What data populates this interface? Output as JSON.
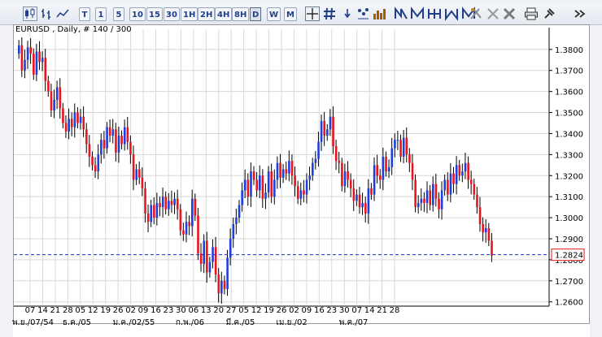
{
  "toolbar": {
    "periods": [
      "1",
      "5",
      "10",
      "15",
      "30",
      "1H",
      "2H",
      "4H",
      "8H",
      "D",
      "W",
      "M"
    ],
    "selected_period": "D",
    "icons": [
      "candlestick-icon",
      "bar-chart-icon",
      "line-chart-icon",
      "T",
      "crosshair-icon",
      "grid-icon",
      "info-icon",
      "indicator-icon",
      "volume-icon",
      "trend-up-icon",
      "trend-down-icon",
      "trend-cross-icon",
      "trend-zigzag-icon",
      "trend-multi-icon",
      "delete-selected-icon",
      "delete-all-icon",
      "close-icon",
      "print-icon",
      "pin-icon",
      "more-icon"
    ]
  },
  "chart_title": "EURUSD , Daily, # 140 / 300",
  "current_price_label": "1.2824",
  "colors": {
    "up": "#1f3fdc",
    "down": "#e8141e",
    "grid": "#d8d8d8",
    "axis_text": "#000000",
    "price_line": "#1f2fd0",
    "price_box": "#e01818"
  },
  "chart_data": {
    "type": "candlestick",
    "y_ticks": [
      "1.3800",
      "1.3700",
      "1.3600",
      "1.3500",
      "1.3400",
      "1.3300",
      "1.3200",
      "1.3100",
      "1.3000",
      "1.2900",
      "1.2800",
      "1.2700",
      "1.2600"
    ],
    "ylim": [
      1.2595,
      1.3865
    ],
    "x_ticks": [
      "07",
      "14",
      "21",
      "28",
      "05",
      "12",
      "19",
      "26",
      "02",
      "09",
      "16",
      "23",
      "30",
      "06",
      "13",
      "20",
      "27",
      "05",
      "12",
      "19",
      "26",
      "02",
      "09",
      "16",
      "23",
      "30",
      "07",
      "14",
      "21",
      "28"
    ],
    "x_month_labels": [
      "พ.ย./07/54",
      "ธ.ค./05",
      "ม.ค./02/55",
      "ก.พ./06",
      "มี.ค./05",
      "เม.ย./02",
      "พ.ค./07"
    ],
    "current_price": 1.2824,
    "closes": [
      1.382,
      1.37,
      1.375,
      1.381,
      1.378,
      1.368,
      1.379,
      1.374,
      1.376,
      1.365,
      1.36,
      1.351,
      1.356,
      1.362,
      1.352,
      1.345,
      1.341,
      1.347,
      1.343,
      1.35,
      1.345,
      1.348,
      1.342,
      1.335,
      1.329,
      1.325,
      1.322,
      1.33,
      1.337,
      1.333,
      1.343,
      1.339,
      1.342,
      1.331,
      1.339,
      1.335,
      1.343,
      1.336,
      1.33,
      1.318,
      1.323,
      1.319,
      1.314,
      1.302,
      1.298,
      1.306,
      1.3,
      1.307,
      1.305,
      1.31,
      1.304,
      1.308,
      1.306,
      1.309,
      1.304,
      1.294,
      1.292,
      1.298,
      1.296,
      1.309,
      1.301,
      1.283,
      1.278,
      1.289,
      1.274,
      1.279,
      1.286,
      1.273,
      1.264,
      1.27,
      1.266,
      1.281,
      1.29,
      1.297,
      1.3,
      1.306,
      1.313,
      1.318,
      1.31,
      1.322,
      1.318,
      1.313,
      1.32,
      1.309,
      1.312,
      1.322,
      1.31,
      1.318,
      1.326,
      1.319,
      1.323,
      1.321,
      1.327,
      1.32,
      1.315,
      1.309,
      1.313,
      1.311,
      1.318,
      1.32,
      1.326,
      1.328,
      1.336,
      1.346,
      1.339,
      1.342,
      1.348,
      1.334,
      1.327,
      1.326,
      1.315,
      1.322,
      1.318,
      1.314,
      1.308,
      1.311,
      1.305,
      1.307,
      1.302,
      1.314,
      1.311,
      1.325,
      1.32,
      1.318,
      1.329,
      1.322,
      1.324,
      1.333,
      1.337,
      1.337,
      1.329,
      1.338,
      1.33,
      1.326,
      1.318,
      1.305,
      1.307,
      1.309,
      1.307,
      1.313,
      1.306,
      1.316,
      1.309,
      1.304,
      1.313,
      1.318,
      1.311,
      1.321,
      1.316,
      1.325,
      1.32,
      1.322,
      1.326,
      1.318,
      1.316,
      1.311,
      1.305,
      1.297,
      1.293,
      1.295,
      1.289,
      1.282
    ]
  }
}
